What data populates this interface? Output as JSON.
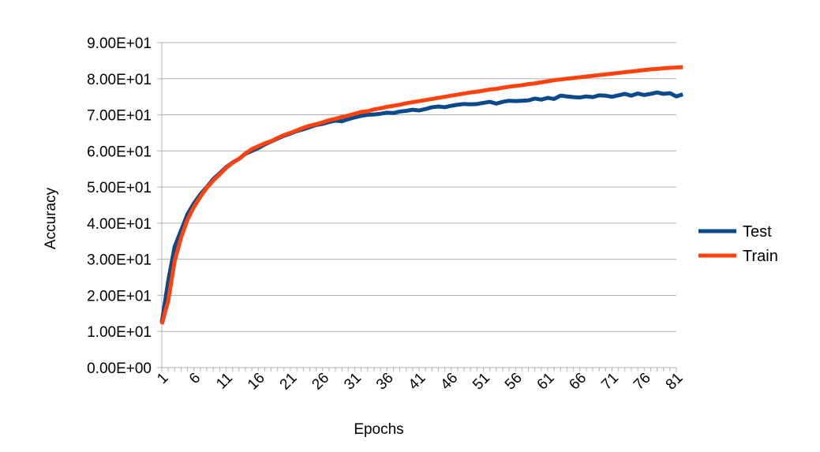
{
  "chart_data": {
    "type": "line",
    "title": "",
    "xlabel": "Epochs",
    "ylabel": "Accuracy",
    "x_tick_labels": [
      "1",
      "6",
      "11",
      "16",
      "21",
      "26",
      "31",
      "36",
      "41",
      "46",
      "51",
      "56",
      "61",
      "66",
      "71",
      "76",
      "81"
    ],
    "y_tick_labels": [
      "0.00E+00",
      "1.00E+01",
      "2.00E+01",
      "3.00E+01",
      "4.00E+01",
      "5.00E+01",
      "6.00E+01",
      "7.00E+01",
      "8.00E+01",
      "9.00E+01"
    ],
    "xlim": [
      1,
      81
    ],
    "ylim": [
      0,
      90
    ],
    "grid": "horizontal",
    "legend_position": "right",
    "series": [
      {
        "name": "Test",
        "color": "#0a4a8a",
        "values": [
          12.5,
          24.0,
          33.5,
          38.0,
          42.5,
          45.5,
          48.0,
          50.0,
          52.2,
          53.8,
          55.5,
          56.8,
          57.8,
          59.2,
          60.0,
          60.8,
          61.8,
          62.6,
          63.4,
          64.2,
          64.8,
          65.5,
          66.0,
          66.6,
          67.2,
          67.5,
          68.0,
          68.4,
          68.2,
          68.8,
          69.3,
          69.7,
          70.0,
          70.1,
          70.3,
          70.6,
          70.5,
          70.9,
          71.1,
          71.4,
          71.2,
          71.6,
          72.1,
          72.3,
          72.1,
          72.5,
          72.8,
          73.0,
          72.9,
          73.0,
          73.3,
          73.6,
          73.1,
          73.6,
          73.9,
          73.8,
          73.9,
          74.0,
          74.5,
          74.2,
          74.7,
          74.4,
          75.3,
          75.1,
          74.9,
          74.8,
          75.1,
          74.9,
          75.4,
          75.3,
          75.0,
          75.4,
          75.8,
          75.3,
          75.9,
          75.5,
          75.8,
          76.2,
          75.8,
          76.0,
          75.1,
          75.7
        ]
      },
      {
        "name": "Train",
        "color": "#ff420e",
        "values": [
          12.0,
          18.5,
          29.5,
          36.0,
          41.0,
          44.5,
          47.3,
          49.8,
          51.8,
          53.5,
          55.3,
          56.7,
          57.8,
          59.3,
          60.5,
          61.3,
          62.1,
          62.7,
          63.6,
          64.4,
          65.0,
          65.7,
          66.4,
          67.0,
          67.4,
          67.9,
          68.5,
          68.9,
          69.4,
          69.8,
          70.3,
          70.8,
          71.0,
          71.5,
          71.8,
          72.2,
          72.5,
          72.8,
          73.2,
          73.5,
          73.8,
          74.1,
          74.4,
          74.7,
          75.0,
          75.3,
          75.6,
          75.9,
          76.2,
          76.4,
          76.7,
          77.0,
          77.2,
          77.5,
          77.8,
          78.0,
          78.2,
          78.5,
          78.7,
          79.0,
          79.3,
          79.6,
          79.8,
          80.0,
          80.2,
          80.4,
          80.6,
          80.8,
          81.0,
          81.2,
          81.4,
          81.6,
          81.8,
          82.0,
          82.2,
          82.4,
          82.6,
          82.7,
          82.9,
          83.0,
          83.1,
          83.2
        ]
      }
    ]
  }
}
